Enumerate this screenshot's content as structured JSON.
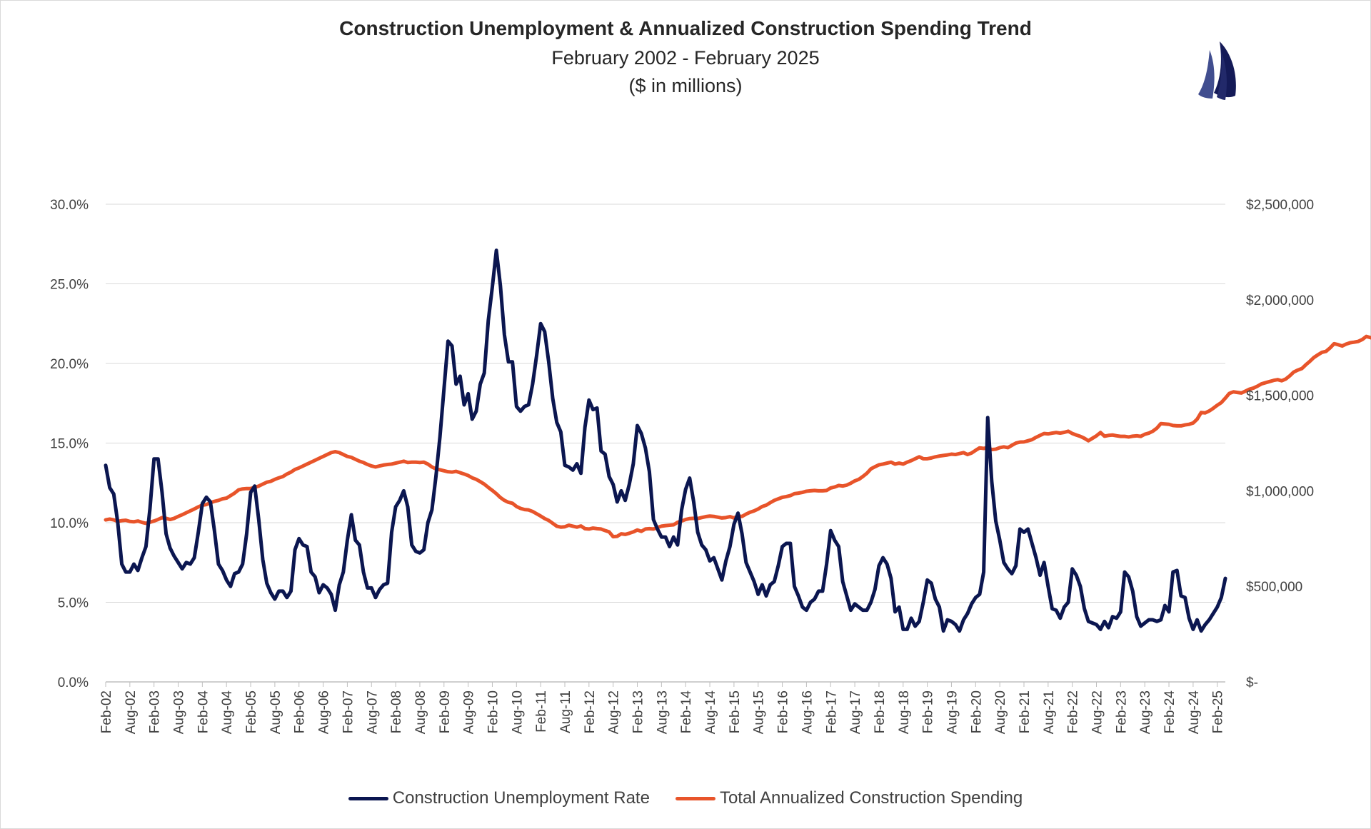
{
  "chart_data": {
    "type": "line",
    "title": "Construction Unemployment & Annualized Construction Spending Trend",
    "subtitle": "February 2002 - February 2025",
    "subtitle2": "($ in millions)",
    "x_tick_labels": [
      "Feb-02",
      "Aug-02",
      "Feb-03",
      "Aug-03",
      "Feb-04",
      "Aug-04",
      "Feb-05",
      "Aug-05",
      "Feb-06",
      "Aug-06",
      "Feb-07",
      "Aug-07",
      "Feb-08",
      "Aug-08",
      "Feb-09",
      "Aug-09",
      "Feb-10",
      "Aug-10",
      "Feb-11",
      "Aug-11",
      "Feb-12",
      "Aug-12",
      "Feb-13",
      "Aug-13",
      "Feb-14",
      "Aug-14",
      "Feb-15",
      "Aug-15",
      "Feb-16",
      "Aug-16",
      "Feb-17",
      "Aug-17",
      "Feb-18",
      "Aug-18",
      "Feb-19",
      "Aug-19",
      "Feb-20",
      "Aug-20",
      "Feb-21",
      "Aug-21",
      "Feb-22",
      "Aug-22",
      "Feb-23",
      "Aug-23",
      "Feb-24",
      "Aug-24",
      "Feb-25"
    ],
    "y_left": {
      "min": 0,
      "max": 30,
      "step": 5,
      "tick_labels": [
        "0.0%",
        "5.0%",
        "10.0%",
        "15.0%",
        "20.0%",
        "25.0%",
        "30.0%"
      ]
    },
    "y_right": {
      "min": 0,
      "max": 2500000,
      "step": 500000,
      "tick_labels": [
        "$-",
        "$500,000",
        "$1,000,000",
        "$1,500,000",
        "$2,000,000",
        "$2,500,000"
      ]
    },
    "gridlines": true,
    "legend_position": "bottom",
    "series": [
      {
        "name": "Construction Unemployment Rate",
        "axis": "left",
        "color": "#0b1650",
        "values": [
          13.6,
          12.2,
          11.8,
          10.0,
          7.4,
          6.9,
          6.9,
          7.4,
          7.0,
          7.8,
          8.5,
          10.9,
          14.0,
          14.0,
          11.9,
          9.3,
          8.4,
          7.9,
          7.5,
          7.1,
          7.5,
          7.4,
          7.8,
          9.4,
          11.2,
          11.6,
          11.3,
          9.5,
          7.4,
          7.0,
          6.4,
          6.0,
          6.8,
          6.9,
          7.4,
          9.3,
          11.9,
          12.3,
          10.2,
          7.7,
          6.2,
          5.6,
          5.2,
          5.7,
          5.7,
          5.3,
          5.7,
          8.3,
          9.0,
          8.6,
          8.5,
          6.9,
          6.6,
          5.6,
          6.1,
          5.9,
          5.5,
          4.5,
          6.1,
          6.9,
          8.9,
          10.5,
          8.9,
          8.6,
          6.9,
          5.9,
          5.9,
          5.3,
          5.8,
          6.1,
          6.2,
          9.4,
          11.0,
          11.4,
          12.0,
          11.0,
          8.6,
          8.2,
          8.1,
          8.3,
          10.0,
          10.8,
          12.9,
          15.4,
          18.4,
          21.4,
          21.1,
          18.7,
          19.2,
          17.4,
          18.1,
          16.5,
          17.0,
          18.7,
          19.4,
          22.7,
          24.8,
          27.1,
          24.9,
          21.8,
          20.1,
          20.1,
          17.3,
          17.0,
          17.3,
          17.4,
          18.7,
          20.5,
          22.5,
          22.0,
          20.1,
          17.8,
          16.3,
          15.7,
          13.6,
          13.5,
          13.3,
          13.7,
          13.1,
          16.0,
          17.7,
          17.1,
          17.2,
          14.5,
          14.3,
          12.9,
          12.4,
          11.3,
          12.0,
          11.4,
          12.4,
          13.7,
          16.1,
          15.6,
          14.7,
          13.2,
          10.2,
          9.6,
          9.1,
          9.1,
          8.5,
          9.1,
          8.6,
          10.8,
          12.1,
          12.8,
          11.3,
          9.4,
          8.6,
          8.3,
          7.6,
          7.8,
          7.1,
          6.4,
          7.6,
          8.5,
          9.9,
          10.6,
          9.3,
          7.5,
          6.9,
          6.3,
          5.5,
          6.1,
          5.4,
          6.1,
          6.3,
          7.3,
          8.5,
          8.7,
          8.7,
          6.0,
          5.4,
          4.7,
          4.5,
          5.0,
          5.2,
          5.7,
          5.7,
          7.4,
          9.5,
          8.9,
          8.5,
          6.3,
          5.4,
          4.5,
          4.9,
          4.7,
          4.5,
          4.5,
          5.0,
          5.8,
          7.3,
          7.8,
          7.4,
          6.5,
          4.4,
          4.7,
          3.3,
          3.3,
          4.0,
          3.5,
          3.8,
          5.0,
          6.4,
          6.2,
          5.2,
          4.7,
          3.2,
          3.9,
          3.8,
          3.6,
          3.2,
          3.9,
          4.3,
          4.9,
          5.3,
          5.5,
          6.9,
          16.6,
          12.6,
          10.1,
          8.9,
          7.5,
          7.1,
          6.8,
          7.3,
          9.6,
          9.4,
          9.6,
          8.7,
          7.8,
          6.7,
          7.5,
          6.0,
          4.6,
          4.5,
          4.0,
          4.7,
          5.0,
          7.1,
          6.7,
          6.0,
          4.6,
          3.8,
          3.7,
          3.6,
          3.3,
          3.8,
          3.4,
          4.1,
          4.0,
          4.4,
          6.9,
          6.6,
          5.7,
          4.1,
          3.5,
          3.7,
          3.9,
          3.9,
          3.8,
          3.9,
          4.8,
          4.4,
          6.9,
          7.0,
          5.4,
          5.3,
          4.0,
          3.3,
          3.9,
          3.2,
          3.6,
          3.9,
          4.3,
          4.7,
          5.3,
          6.5
        ]
      },
      {
        "name": "Total Annualized Construction Spending",
        "axis": "right",
        "color": "#e8542a",
        "values": [
          848000,
          852000,
          848000,
          840000,
          844000,
          846000,
          840000,
          838000,
          842000,
          835000,
          830000,
          836000,
          842000,
          850000,
          860000,
          856000,
          850000,
          856000,
          866000,
          875000,
          885000,
          895000,
          905000,
          916000,
          925000,
          928000,
          938000,
          945000,
          950000,
          958000,
          962000,
          975000,
          988000,
          1005000,
          1010000,
          1012000,
          1012000,
          1018000,
          1025000,
          1035000,
          1045000,
          1050000,
          1060000,
          1068000,
          1075000,
          1088000,
          1098000,
          1112000,
          1120000,
          1130000,
          1140000,
          1150000,
          1160000,
          1170000,
          1180000,
          1190000,
          1200000,
          1205000,
          1200000,
          1190000,
          1180000,
          1175000,
          1165000,
          1155000,
          1148000,
          1138000,
          1130000,
          1125000,
          1130000,
          1135000,
          1138000,
          1140000,
          1145000,
          1150000,
          1155000,
          1148000,
          1150000,
          1150000,
          1148000,
          1150000,
          1140000,
          1125000,
          1115000,
          1110000,
          1105000,
          1100000,
          1098000,
          1102000,
          1095000,
          1088000,
          1080000,
          1068000,
          1060000,
          1048000,
          1035000,
          1018000,
          1002000,
          985000,
          965000,
          950000,
          940000,
          935000,
          918000,
          908000,
          902000,
          900000,
          892000,
          880000,
          868000,
          855000,
          845000,
          830000,
          815000,
          810000,
          812000,
          820000,
          815000,
          810000,
          816000,
          802000,
          800000,
          805000,
          802000,
          800000,
          792000,
          785000,
          760000,
          762000,
          775000,
          772000,
          778000,
          785000,
          795000,
          788000,
          800000,
          802000,
          800000,
          808000,
          815000,
          818000,
          820000,
          822000,
          835000,
          842000,
          850000,
          855000,
          856000,
          855000,
          860000,
          865000,
          868000,
          866000,
          862000,
          858000,
          860000,
          865000,
          858000,
          868000,
          866000,
          878000,
          888000,
          895000,
          905000,
          918000,
          925000,
          938000,
          950000,
          958000,
          966000,
          970000,
          975000,
          985000,
          988000,
          992000,
          998000,
          1000000,
          1002000,
          1000000,
          1000000,
          1002000,
          1015000,
          1020000,
          1028000,
          1025000,
          1030000,
          1040000,
          1052000,
          1060000,
          1075000,
          1092000,
          1115000,
          1126000,
          1136000,
          1140000,
          1145000,
          1150000,
          1140000,
          1145000,
          1140000,
          1150000,
          1158000,
          1168000,
          1178000,
          1168000,
          1168000,
          1172000,
          1178000,
          1182000,
          1185000,
          1188000,
          1192000,
          1190000,
          1195000,
          1200000,
          1190000,
          1198000,
          1212000,
          1225000,
          1222000,
          1226000,
          1216000,
          1218000,
          1226000,
          1230000,
          1226000,
          1238000,
          1250000,
          1255000,
          1256000,
          1262000,
          1268000,
          1280000,
          1290000,
          1300000,
          1298000,
          1302000,
          1305000,
          1302000,
          1306000,
          1312000,
          1300000,
          1292000,
          1285000,
          1275000,
          1262000,
          1275000,
          1288000,
          1305000,
          1286000,
          1290000,
          1292000,
          1288000,
          1285000,
          1285000,
          1282000,
          1286000,
          1288000,
          1285000,
          1296000,
          1302000,
          1312000,
          1328000,
          1352000,
          1350000,
          1348000,
          1342000,
          1340000,
          1340000,
          1345000,
          1348000,
          1355000,
          1375000,
          1410000,
          1408000,
          1418000,
          1432000,
          1448000,
          1462000,
          1485000,
          1510000,
          1518000,
          1515000,
          1512000,
          1522000,
          1532000,
          1538000,
          1548000,
          1560000,
          1566000,
          1572000,
          1578000,
          1582000,
          1576000,
          1585000,
          1602000,
          1622000,
          1632000,
          1640000,
          1660000,
          1678000,
          1698000,
          1712000,
          1725000,
          1730000,
          1748000,
          1770000,
          1765000,
          1758000,
          1768000,
          1775000,
          1778000,
          1782000,
          1792000,
          1808000,
          1802000,
          1796000,
          1802000,
          1808000,
          1810000,
          1812000,
          1822000,
          1830000,
          1832000,
          1828000,
          1870000,
          1885000,
          1895000,
          1912000,
          1928000,
          1945000,
          1962000,
          1970000,
          1976000,
          1985000,
          2002000,
          2015000,
          2028000,
          2050000,
          2065000,
          2080000,
          2100000,
          2102000,
          2098000,
          2095000,
          2088000,
          2092000,
          2105000,
          2125000,
          2132000,
          2142000,
          2155000,
          2158000,
          2148000,
          2135000,
          2145000,
          2158000,
          2168000,
          2152000,
          2145000,
          2182000,
          2192000,
          2190000,
          2192000,
          2194000
        ]
      }
    ]
  }
}
